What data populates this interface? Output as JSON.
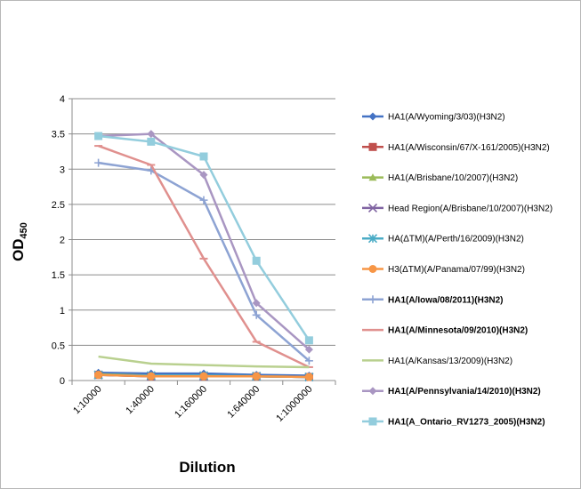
{
  "chart_data": {
    "type": "line",
    "title": "",
    "xlabel": "Dilution",
    "ylabel": "OD",
    "ylabel_subscript": "450",
    "ylim": [
      0,
      4
    ],
    "yticks": [
      "0",
      "0.5",
      "1",
      "1.5",
      "2",
      "2.5",
      "3",
      "3.5",
      "4"
    ],
    "grid": "horizontal",
    "legend_position": "right",
    "categories": [
      "1:10000",
      "1:40000",
      "1:160000",
      "1:640000",
      "1:1000000"
    ],
    "series": [
      {
        "name": "HA1(A/Wyoming/3/03)(H3N2)",
        "color": "#4472c4",
        "marker": "diamond",
        "bold": false,
        "values": [
          0.11,
          0.1,
          0.1,
          0.08,
          0.07
        ]
      },
      {
        "name": "HA1(A/Wisconsin/67/X-161/2005)(H3N2)",
        "color": "#c0504d",
        "marker": "square",
        "bold": false,
        "values": [
          0.08,
          0.06,
          0.06,
          0.06,
          0.05
        ]
      },
      {
        "name": "HA1(A/Brisbane/10/2007)(H3N2)",
        "color": "#9bbb59",
        "marker": "triangle",
        "bold": false,
        "values": [
          0.09,
          0.07,
          0.07,
          0.06,
          0.05
        ]
      },
      {
        "name": "Head Region(A/Brisbane/10/2007)(H3N2)",
        "color": "#8064a2",
        "marker": "x",
        "bold": false,
        "values": [
          0.08,
          0.06,
          0.06,
          0.06,
          0.05
        ]
      },
      {
        "name": "HA(ΔTM)(A/Perth/16/2009)(H3N2)",
        "color": "#4bacc6",
        "marker": "star",
        "bold": false,
        "values": [
          0.08,
          0.07,
          0.07,
          0.06,
          0.05
        ]
      },
      {
        "name": "H3(ΔTM)(A/Panama/07/99)(H3N2)",
        "color": "#f79646",
        "marker": "circle",
        "bold": false,
        "values": [
          0.08,
          0.06,
          0.06,
          0.06,
          0.05
        ]
      },
      {
        "name": "HA1(A/Iowa/08/2011)(H3N2)",
        "color": "#8da3d3",
        "marker": "plus",
        "bold": true,
        "values": [
          3.09,
          2.98,
          2.56,
          0.93,
          0.28
        ]
      },
      {
        "name": "HA1(A/Minnesota/09/2010)(H3N2)",
        "color": "#e0908e",
        "marker": "dash",
        "bold": true,
        "values": [
          3.33,
          3.06,
          1.73,
          0.55,
          0.19
        ]
      },
      {
        "name": "HA1(A/Kansas/13/2009)(H3N2)",
        "color": "#b9d08f",
        "marker": "none",
        "bold": false,
        "values": [
          0.34,
          0.24,
          0.22,
          0.2,
          0.19
        ]
      },
      {
        "name": "HA1(A/Pennsylvania/14/2010)(H3N2)",
        "color": "#a996c2",
        "marker": "diamond",
        "bold": true,
        "values": [
          3.47,
          3.5,
          2.92,
          1.1,
          0.44
        ]
      },
      {
        "name": "HA1(A_Ontario_RV1273_2005)(H3N2)",
        "color": "#93cddd",
        "marker": "square",
        "bold": true,
        "values": [
          3.47,
          3.39,
          3.18,
          1.7,
          0.57
        ]
      }
    ]
  }
}
